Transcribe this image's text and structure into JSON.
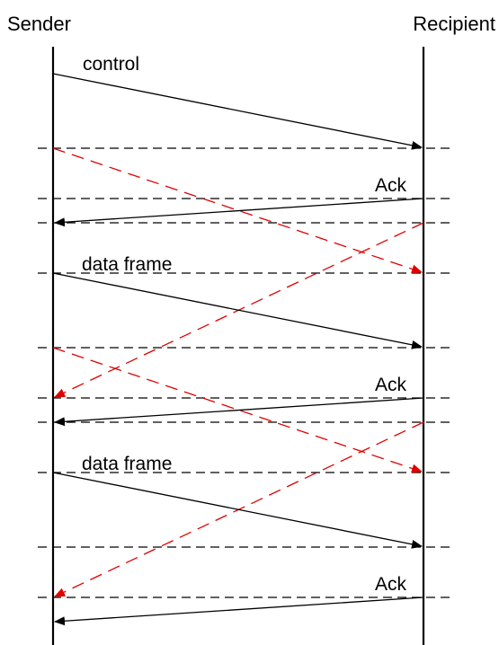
{
  "participants": {
    "sender": "Sender",
    "recipient": "Recipient"
  },
  "messages": [
    {
      "label": "control",
      "direction": "sender-to-recipient",
      "style": "solid",
      "color": "#000000"
    },
    {
      "label": "",
      "direction": "sender-to-recipient",
      "style": "dashed",
      "color": "#e00000"
    },
    {
      "label": "Ack",
      "direction": "recipient-to-sender",
      "style": "solid",
      "color": "#000000"
    },
    {
      "label": "",
      "direction": "recipient-to-sender",
      "style": "dashed",
      "color": "#e00000"
    },
    {
      "label": "data frame",
      "direction": "sender-to-recipient",
      "style": "solid",
      "color": "#000000"
    },
    {
      "label": "",
      "direction": "sender-to-recipient",
      "style": "dashed",
      "color": "#e00000"
    },
    {
      "label": "Ack",
      "direction": "recipient-to-sender",
      "style": "solid",
      "color": "#000000"
    },
    {
      "label": "",
      "direction": "recipient-to-sender",
      "style": "dashed",
      "color": "#e00000"
    },
    {
      "label": "data frame",
      "direction": "sender-to-recipient",
      "style": "solid",
      "color": "#000000"
    },
    {
      "label": "Ack",
      "direction": "recipient-to-sender",
      "style": "solid",
      "color": "#000000"
    }
  ]
}
